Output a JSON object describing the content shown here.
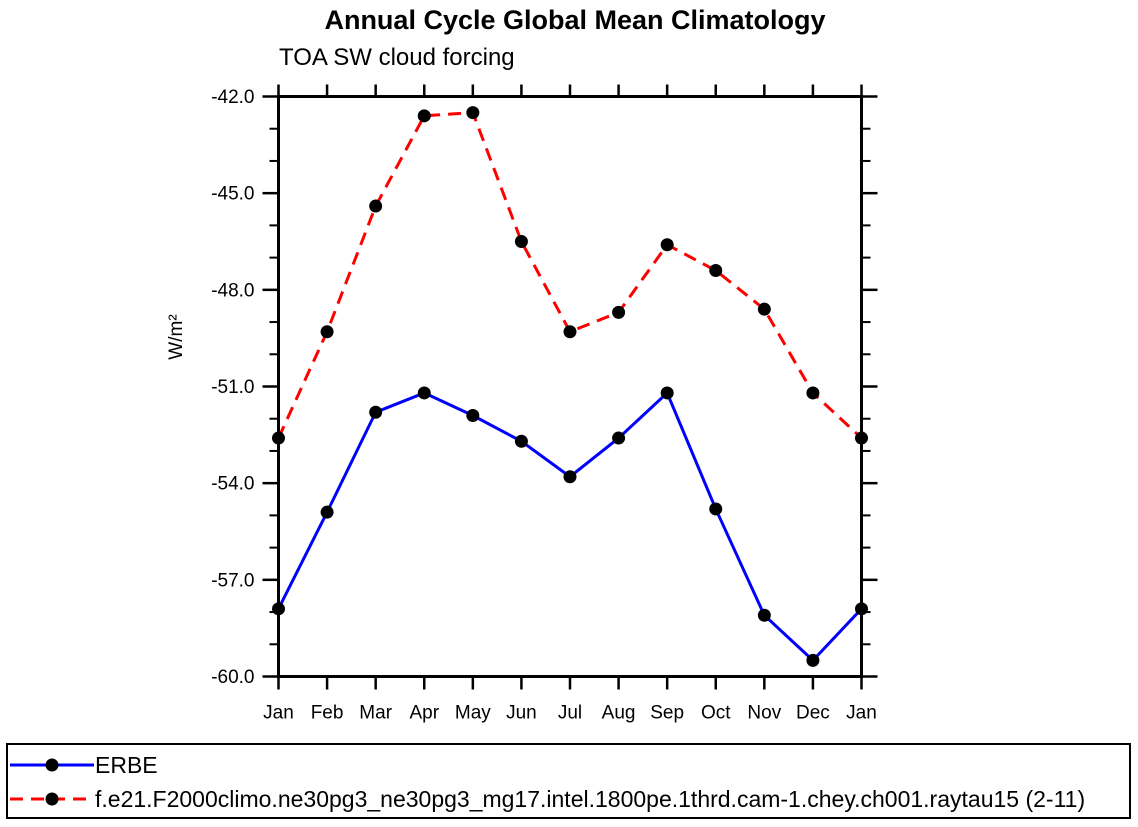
{
  "title": "Annual Cycle Global Mean Climatology",
  "subtitle": "TOA SW cloud forcing",
  "chart_data": {
    "type": "line",
    "title": "Annual Cycle Global Mean Climatology",
    "subtitle": "TOA SW cloud forcing",
    "xlabel": "",
    "ylabel": "W/m²",
    "x_categories": [
      "Jan",
      "Feb",
      "Mar",
      "Apr",
      "May",
      "Jun",
      "Jul",
      "Aug",
      "Sep",
      "Oct",
      "Nov",
      "Dec",
      "Jan"
    ],
    "ylim": [
      -60,
      -42
    ],
    "yticks": [
      -42,
      -45,
      -48,
      -51,
      -54,
      -57,
      -60
    ],
    "ytick_format_decimals": 1,
    "y_minor_step": 1,
    "grid": false,
    "legend_position": "bottom-box-full-width",
    "axis_color": "#000000",
    "marker": "filled-circle",
    "marker_color": "#000000",
    "series": [
      {
        "name": "ERBE",
        "color": "#0000ff",
        "line_style": "solid",
        "values": [
          -57.9,
          -54.9,
          -51.8,
          -51.2,
          -51.9,
          -52.7,
          -53.8,
          -52.6,
          -51.2,
          -54.8,
          -58.1,
          -59.5,
          -57.9
        ]
      },
      {
        "name": "f.e21.F2000climo.ne30pg3_ne30pg3_mg17.intel.1800pe.1thrd.cam-1.chey.ch001.raytau15 (2-11)",
        "color": "#ff0000",
        "line_style": "dashed",
        "values": [
          -52.6,
          -49.3,
          -45.4,
          -42.6,
          -42.5,
          -46.5,
          -49.3,
          -48.7,
          -46.6,
          -47.4,
          -48.6,
          -51.2,
          -52.6
        ]
      }
    ]
  }
}
